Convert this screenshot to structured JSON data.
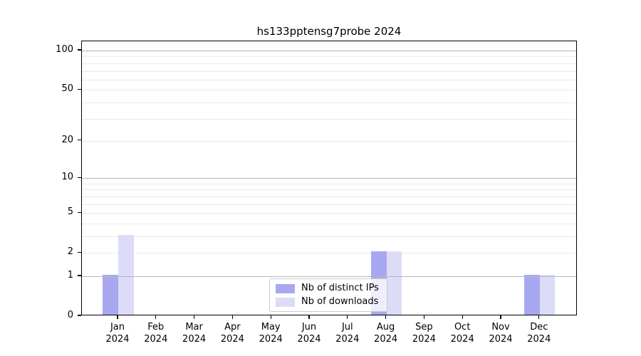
{
  "chart_data": {
    "type": "bar",
    "title": "hs133pptensg7probe 2024",
    "categories": [
      "Jan 2024",
      "Feb 2024",
      "Mar 2024",
      "Apr 2024",
      "May 2024",
      "Jun 2024",
      "Jul 2024",
      "Aug 2024",
      "Sep 2024",
      "Oct 2024",
      "Nov 2024",
      "Dec 2024"
    ],
    "x_tick_line1": [
      "Jan",
      "Feb",
      "Mar",
      "Apr",
      "May",
      "Jun",
      "Jul",
      "Aug",
      "Sep",
      "Oct",
      "Nov",
      "Dec"
    ],
    "x_tick_line2": "2024",
    "series": [
      {
        "name": "Nb of distinct IPs",
        "color": "#a8a8f0",
        "values": [
          1,
          0,
          0,
          0,
          0,
          0,
          0,
          2,
          0,
          0,
          0,
          1
        ]
      },
      {
        "name": "Nb of downloads",
        "color": "#dcdcf8",
        "values": [
          3,
          0,
          0,
          0,
          0,
          0,
          0,
          2,
          0,
          0,
          0,
          1
        ]
      }
    ],
    "xlabel": "",
    "ylabel": "",
    "yscale": "log1p",
    "ylim": [
      0,
      117
    ],
    "yticks": [
      0,
      1,
      2,
      5,
      10,
      20,
      50,
      100
    ],
    "major_gridlines": [
      1,
      10,
      100
    ],
    "minor_gridlines": [
      2,
      3,
      4,
      5,
      6,
      7,
      8,
      9,
      20,
      30,
      40,
      50,
      60,
      70,
      80,
      90
    ],
    "grid": "horizontal",
    "legend": {
      "position": "lower center",
      "entries": [
        "Nb of distinct IPs",
        "Nb of downloads"
      ]
    }
  },
  "colors": {
    "background": "#ffffff",
    "spine": "#000000",
    "major_grid": "#b6b6b6",
    "minor_grid": "#e9e9e9",
    "text": "#000000",
    "legend_border": "#cccccc",
    "distinct_ips": "#a8a8f0",
    "downloads": "#dcdcf8"
  }
}
